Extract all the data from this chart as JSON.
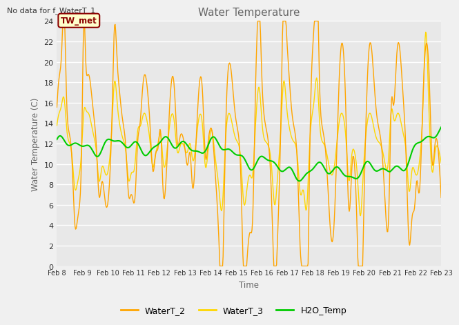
{
  "title": "Water Temperature",
  "ylabel": "Water Temperature (C)",
  "xlabel": "Time",
  "no_data_text": "No data for f_WaterT_1",
  "legend_label_text": "TW_met",
  "ylim": [
    0,
    24
  ],
  "yticks": [
    0,
    2,
    4,
    6,
    8,
    10,
    12,
    14,
    16,
    18,
    20,
    22,
    24
  ],
  "xtick_labels": [
    "Feb 8",
    "Feb 9",
    "Feb 10",
    "Feb 11",
    "Feb 12",
    "Feb 13",
    "Feb 14",
    "Feb 15",
    "Feb 16",
    "Feb 17",
    "Feb 18",
    "Feb 19",
    "Feb 20",
    "Feb 21",
    "Feb 22",
    "Feb 23"
  ],
  "color_WaterT2": "#FFA500",
  "color_WaterT3": "#FFD700",
  "color_H2O": "#00CC00",
  "fig_bg": "#F0F0F0",
  "plot_bg": "#E8E8E8",
  "grid_color": "#FFFFFF",
  "legend_box_bg": "#FFFFCC",
  "legend_box_edge": "#8B0000",
  "legend_text_color": "#8B0000",
  "title_color": "#666666",
  "label_color": "#666666",
  "tick_color": "#333333"
}
